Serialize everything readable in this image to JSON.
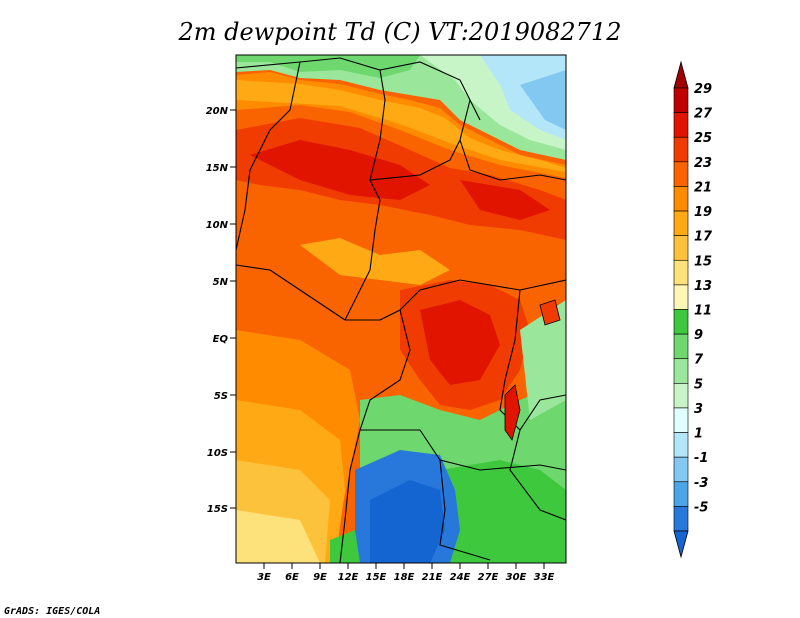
{
  "title": "2m dewpoint Td (C) VT:2019082712",
  "credit": "GrADS: IGES/COLA",
  "map": {
    "lat_labels": [
      "20N",
      "15N",
      "10N",
      "5N",
      "EQ",
      "5S",
      "10S",
      "15S"
    ],
    "lon_labels": [
      "3E",
      "6E",
      "9E",
      "12E",
      "15E",
      "18E",
      "21E",
      "24E",
      "27E",
      "30E",
      "33E"
    ]
  },
  "colorbar": {
    "levels": [
      "29",
      "27",
      "25",
      "23",
      "21",
      "19",
      "17",
      "15",
      "13",
      "11",
      "9",
      "7",
      "5",
      "3",
      "1",
      "-1",
      "-3",
      "-5"
    ],
    "colors": [
      "#a00000",
      "#c00000",
      "#e11400",
      "#f03c00",
      "#fa6400",
      "#ff8c00",
      "#ffaa14",
      "#fdc23c",
      "#fde17a",
      "#fff5b4",
      "#3ec83e",
      "#6ed86e",
      "#9ae69a",
      "#c8f5c8",
      "#e0ffff",
      "#b4e6fa",
      "#82c8f0",
      "#4ba5e6",
      "#2878dc",
      "#1464d2"
    ]
  }
}
